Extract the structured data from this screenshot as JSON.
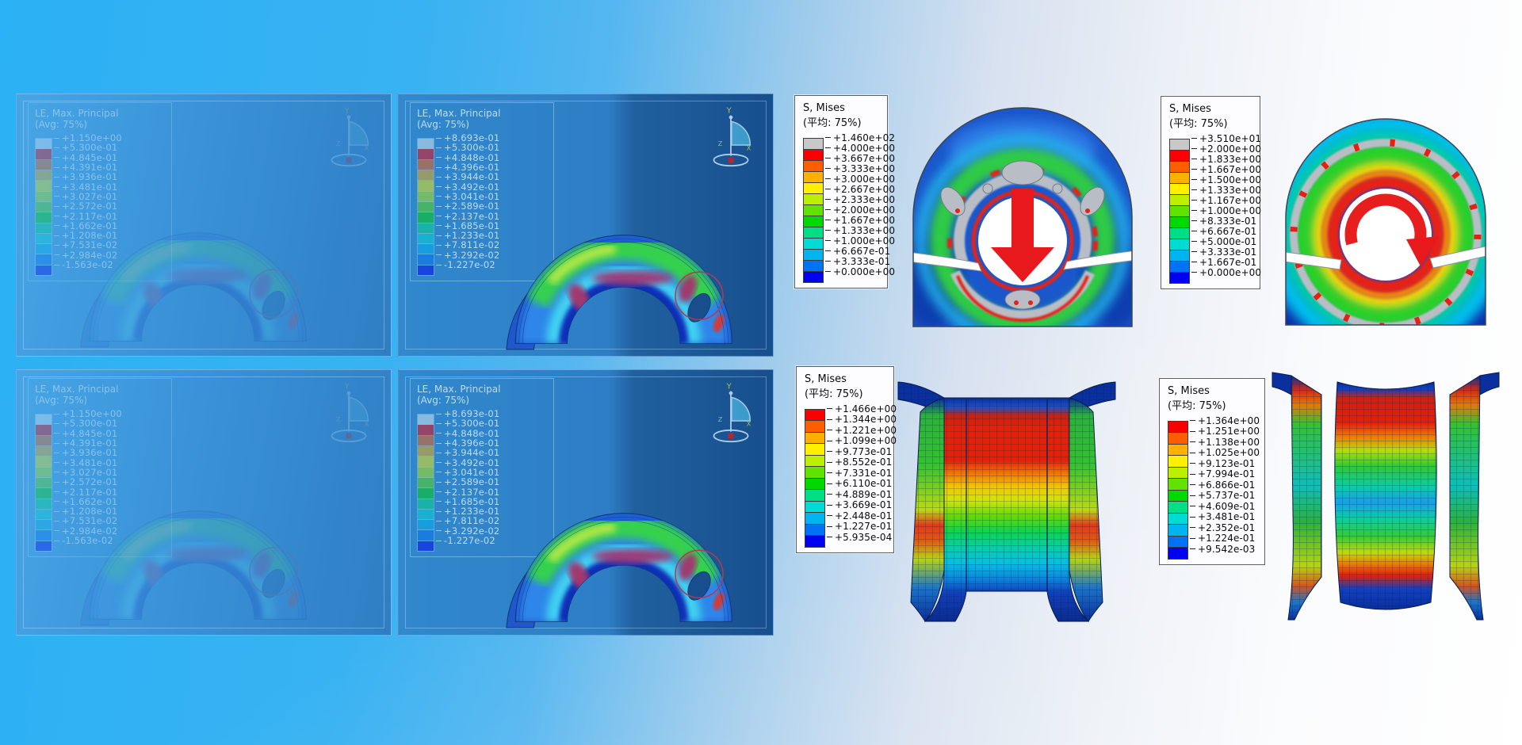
{
  "colors": {
    "rainbow": [
      "#fa0000",
      "#ff5e00",
      "#ffb000",
      "#fff000",
      "#bdf000",
      "#62e200",
      "#00d800",
      "#00df86",
      "#00dcd3",
      "#00b4f0",
      "#0072f5",
      "#0000f0"
    ],
    "overflow_gray": "#c8c8c8",
    "overflow_light": "#e4eef6",
    "arrow_red": "#e8191d",
    "annotation_red": "#b23a52",
    "panel_blue_light": "#3a92d8",
    "panel_blue_dark": "#174e8d",
    "bg_left": "#2bb1f5",
    "bg_right": "#ffffff"
  },
  "triad": {
    "x": "X",
    "y": "Y",
    "z": "Z"
  },
  "le_panels": [
    {
      "id": "top-left",
      "title": "LE, Max. Principal",
      "subtitle": "(Avg: 75%)",
      "top_color": "#e4eef6",
      "values": [
        "+1.150e+00",
        "+5.300e-01",
        "+4.845e-01",
        "+4.391e-01",
        "+3.936e-01",
        "+3.481e-01",
        "+3.027e-01",
        "+2.572e-01",
        "+2.117e-01",
        "+1.662e-01",
        "+1.208e-01",
        "+7.531e-02",
        "+2.984e-02",
        "-1.563e-02"
      ]
    },
    {
      "id": "top-middle",
      "title": "LE, Max. Principal",
      "subtitle": "(Avg: 75%)",
      "top_color": "#e4eef6",
      "values": [
        "+8.693e-01",
        "+5.300e-01",
        "+4.848e-01",
        "+4.396e-01",
        "+3.944e-01",
        "+3.492e-01",
        "+3.041e-01",
        "+2.589e-01",
        "+2.137e-01",
        "+1.685e-01",
        "+1.233e-01",
        "+7.811e-02",
        "+3.292e-02",
        "-1.227e-02"
      ]
    },
    {
      "id": "bottom-left",
      "title": "LE, Max. Principal",
      "subtitle": "(Avg: 75%)",
      "top_color": "#e4eef6",
      "values": [
        "+1.150e+00",
        "+5.300e-01",
        "+4.845e-01",
        "+4.391e-01",
        "+3.936e-01",
        "+3.481e-01",
        "+3.027e-01",
        "+2.572e-01",
        "+2.117e-01",
        "+1.662e-01",
        "+1.208e-01",
        "+7.531e-02",
        "+2.984e-02",
        "-1.563e-02"
      ]
    },
    {
      "id": "bottom-middle",
      "title": "LE, Max. Principal",
      "subtitle": "(Avg: 75%)",
      "top_color": "#e4eef6",
      "values": [
        "+8.693e-01",
        "+5.300e-01",
        "+4.848e-01",
        "+4.396e-01",
        "+3.944e-01",
        "+3.492e-01",
        "+3.041e-01",
        "+2.589e-01",
        "+2.137e-01",
        "+1.685e-01",
        "+1.233e-01",
        "+7.811e-02",
        "+3.292e-02",
        "-1.227e-02"
      ]
    }
  ],
  "mises_legends": [
    {
      "id": "clamp-down",
      "title": "S, Mises",
      "subtitle": "(平均: 75%)",
      "top_color": "#c8c8c8",
      "values": [
        "+1.460e+02",
        "+4.000e+00",
        "+3.667e+00",
        "+3.333e+00",
        "+3.000e+00",
        "+2.667e+00",
        "+2.333e+00",
        "+2.000e+00",
        "+1.667e+00",
        "+1.333e+00",
        "+1.000e+00",
        "+6.667e-01",
        "+3.333e-01",
        "+0.000e+00"
      ]
    },
    {
      "id": "clamp-rotate",
      "title": "S, Mises",
      "subtitle": "(平均: 75%)",
      "top_color": "#c8c8c8",
      "values": [
        "+3.510e+01",
        "+2.000e+00",
        "+1.833e+00",
        "+1.667e+00",
        "+1.500e+00",
        "+1.333e+00",
        "+1.167e+00",
        "+1.000e+00",
        "+8.333e-01",
        "+6.667e-01",
        "+5.000e-01",
        "+3.333e-01",
        "+1.667e-01",
        "+0.000e+00"
      ]
    },
    {
      "id": "column",
      "title": "S, Mises",
      "subtitle": "(平均: 75%)",
      "top_color": null,
      "values": [
        "+1.466e+00",
        "+1.344e+00",
        "+1.221e+00",
        "+1.099e+00",
        "+9.773e-01",
        "+8.552e-01",
        "+7.331e-01",
        "+6.110e-01",
        "+4.889e-01",
        "+3.669e-01",
        "+2.448e-01",
        "+1.227e-01",
        "+5.935e-04"
      ]
    },
    {
      "id": "spool",
      "title": "S, Mises",
      "subtitle": "(平均: 75%)",
      "top_color": null,
      "values": [
        "+1.364e+00",
        "+1.251e+00",
        "+1.138e+00",
        "+1.025e+00",
        "+9.123e-01",
        "+7.994e-01",
        "+6.866e-01",
        "+5.737e-01",
        "+4.609e-01",
        "+3.481e-01",
        "+2.352e-01",
        "+1.224e-01",
        "+9.542e-03"
      ]
    }
  ],
  "figures": {
    "clamp_down": {
      "annotation": "downward load arrow"
    },
    "clamp_rotate": {
      "annotation": "clockwise torque arrow"
    },
    "column": {
      "annotation": "meshed column contour"
    },
    "spool": {
      "annotation": "meshed spool contour"
    }
  }
}
